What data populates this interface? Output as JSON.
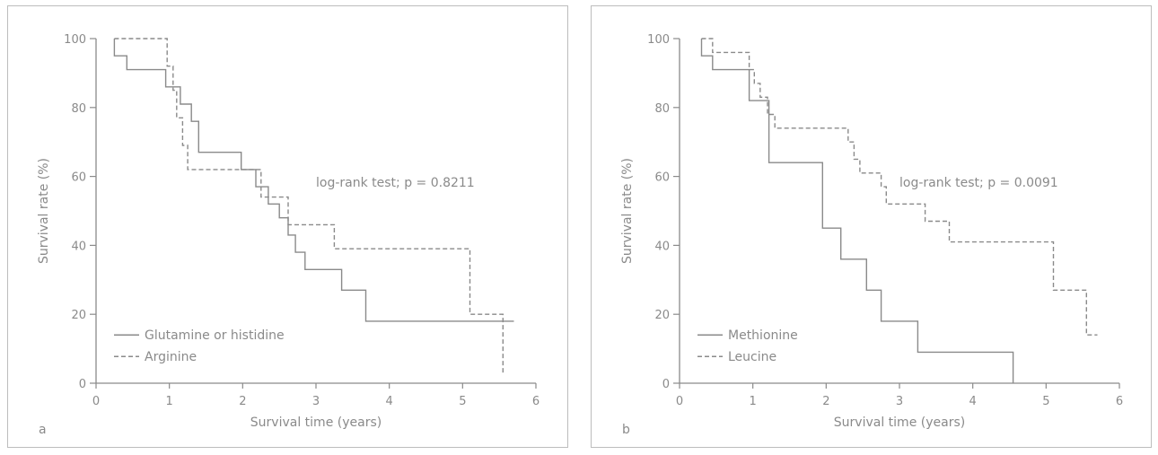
{
  "chart_data": [
    {
      "panel_label": "a",
      "type": "line",
      "xlabel": "Survival time (years)",
      "ylabel": "Survival rate (%)",
      "xlim": [
        0,
        6
      ],
      "ylim": [
        0,
        100
      ],
      "xticks": [
        0,
        1,
        2,
        3,
        4,
        5,
        6
      ],
      "yticks": [
        0,
        20,
        40,
        60,
        80,
        100
      ],
      "annotation": "log-rank test; p = 0.8211",
      "legend_position": "bottom-left",
      "series": [
        {
          "name": "Glutamine or histidine",
          "style": "solid",
          "x": [
            0.25,
            0.25,
            0.42,
            0.42,
            0.95,
            0.95,
            1.15,
            1.15,
            1.3,
            1.3,
            1.4,
            1.4,
            1.98,
            1.98,
            2.18,
            2.18,
            2.35,
            2.35,
            2.5,
            2.5,
            2.62,
            2.62,
            2.72,
            2.72,
            2.85,
            2.85,
            3.35,
            3.35,
            3.68,
            3.68,
            4.55,
            4.55,
            5.7
          ],
          "y": [
            100,
            95,
            95,
            91,
            91,
            86,
            86,
            81,
            81,
            76,
            76,
            67,
            67,
            62,
            62,
            57,
            57,
            52,
            52,
            48,
            48,
            43,
            43,
            38,
            38,
            33,
            33,
            27,
            27,
            18,
            18,
            18,
            18
          ]
        },
        {
          "name": "Arginine",
          "style": "dashed",
          "x": [
            0.25,
            0.97,
            0.97,
            1.05,
            1.05,
            1.1,
            1.1,
            1.18,
            1.18,
            1.25,
            1.25,
            1.32,
            1.32,
            2.25,
            2.25,
            2.47,
            2.47,
            2.62,
            2.62,
            2.75,
            2.75,
            3.25,
            3.25,
            5.1,
            5.1,
            5.55,
            5.55
          ],
          "y": [
            100,
            100,
            92,
            92,
            85,
            85,
            77,
            77,
            69,
            69,
            62,
            62,
            62,
            62,
            54,
            54,
            54,
            54,
            46,
            46,
            46,
            46,
            39,
            39,
            20,
            20,
            3
          ]
        }
      ]
    },
    {
      "panel_label": "b",
      "type": "line",
      "xlabel": "Survival time (years)",
      "ylabel": "Survival rate (%)",
      "xlim": [
        0,
        6
      ],
      "ylim": [
        0,
        100
      ],
      "xticks": [
        0,
        1,
        2,
        3,
        4,
        5,
        6
      ],
      "yticks": [
        0,
        20,
        40,
        60,
        80,
        100
      ],
      "annotation": "log-rank test; p = 0.0091",
      "legend_position": "bottom-left",
      "series": [
        {
          "name": "Methionine",
          "style": "solid",
          "x": [
            0.3,
            0.3,
            0.45,
            0.45,
            0.95,
            0.95,
            1.22,
            1.22,
            1.95,
            1.95,
            2.2,
            2.2,
            2.55,
            2.55,
            2.75,
            2.75,
            3.25,
            3.25,
            4.55,
            4.55
          ],
          "y": [
            100,
            95,
            95,
            91,
            91,
            82,
            82,
            64,
            64,
            45,
            45,
            36,
            36,
            27,
            27,
            18,
            18,
            9,
            9,
            0
          ]
        },
        {
          "name": "Leucine",
          "style": "dashed",
          "x": [
            0.3,
            0.45,
            0.45,
            0.95,
            0.95,
            1.02,
            1.02,
            1.1,
            1.1,
            1.2,
            1.2,
            1.3,
            1.3,
            1.4,
            1.4,
            2.3,
            2.3,
            2.38,
            2.38,
            2.46,
            2.46,
            2.55,
            2.55,
            2.75,
            2.75,
            2.82,
            2.82,
            2.9,
            2.9,
            3.35,
            3.35,
            3.68,
            3.68,
            5.1,
            5.1,
            5.55,
            5.55,
            5.7
          ],
          "y": [
            100,
            100,
            96,
            96,
            91,
            91,
            87,
            87,
            83,
            83,
            78,
            78,
            74,
            74,
            74,
            74,
            70,
            70,
            65,
            65,
            61,
            61,
            61,
            61,
            57,
            57,
            52,
            52,
            52,
            52,
            47,
            47,
            41,
            41,
            27,
            27,
            14,
            14
          ]
        }
      ]
    }
  ]
}
